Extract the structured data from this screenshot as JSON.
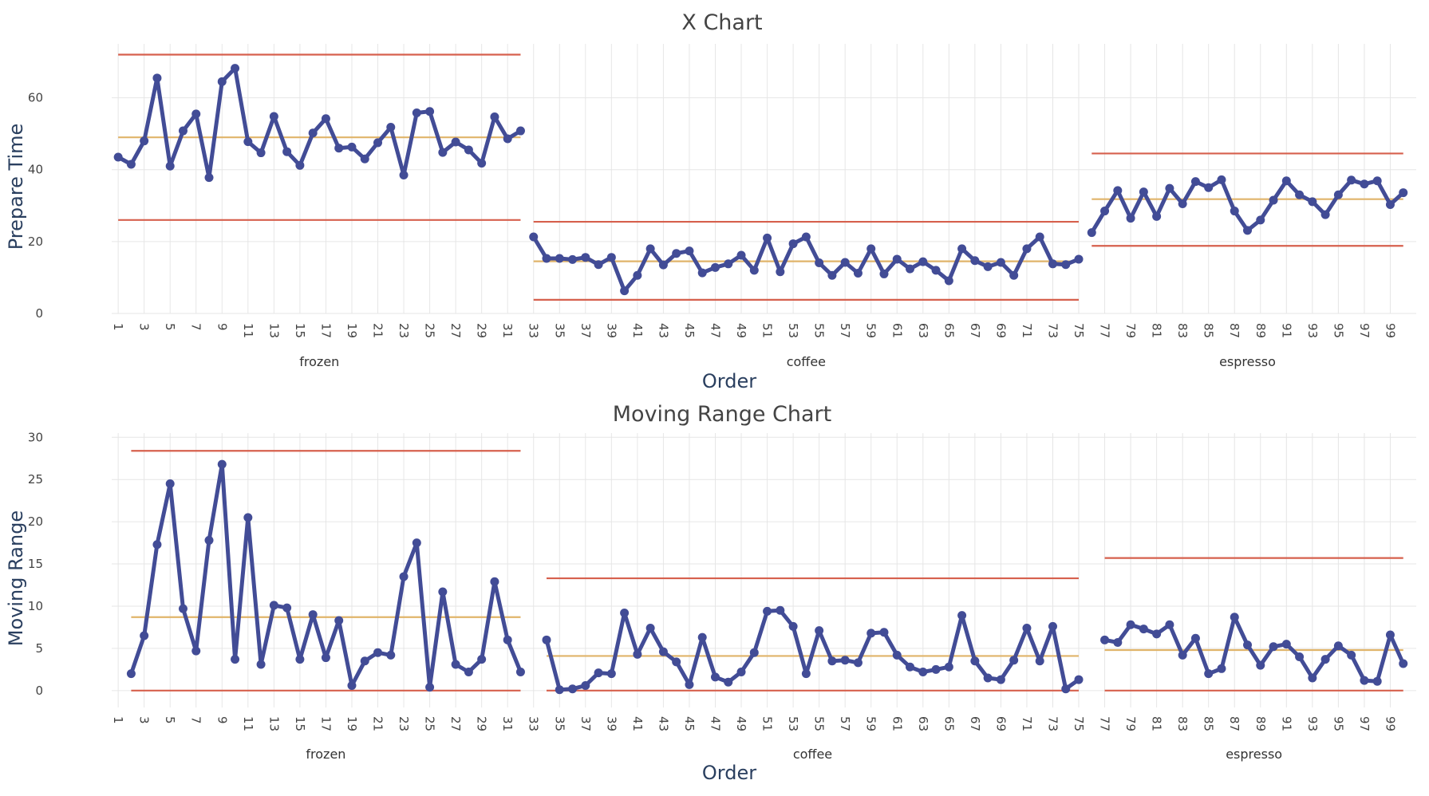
{
  "colors": {
    "series": "#424c96",
    "limit": "#d6604d",
    "center": "#e0b46a",
    "grid": "#e6e6e6"
  },
  "chart_data": [
    {
      "type": "line",
      "title": "X Chart",
      "xlabel": "Order",
      "ylabel": "Prepare Time",
      "ylim": [
        0,
        75
      ],
      "yticks": [
        0,
        20,
        40,
        60
      ],
      "xlim": [
        0.5,
        101
      ],
      "x_tick_labels": [
        1,
        3,
        5,
        7,
        9,
        11,
        13,
        15,
        17,
        19,
        21,
        23,
        25,
        27,
        29,
        31,
        33,
        35,
        37,
        39,
        41,
        43,
        45,
        47,
        49,
        51,
        53,
        55,
        57,
        59,
        61,
        63,
        65,
        67,
        69,
        71,
        73,
        75,
        77,
        79,
        81,
        83,
        85,
        87,
        89,
        91,
        93,
        95,
        97,
        99
      ],
      "groups": [
        {
          "name": "frozen",
          "x_start": 1,
          "values": [
            43.5,
            41.5,
            48,
            65.5,
            41,
            50.8,
            55.5,
            37.8,
            64.5,
            68.2,
            47.8,
            44.7,
            54.8,
            45,
            41.2,
            50.2,
            54.2,
            46,
            46.3,
            43,
            47.5,
            51.8,
            38.5,
            55.8,
            56.2,
            44.8,
            47.7,
            45.5,
            41.8,
            54.7,
            48.6,
            50.8
          ],
          "ucl": 72,
          "center": 49,
          "lcl": 26
        },
        {
          "name": "coffee",
          "x_start": 33,
          "values": [
            21.3,
            15.3,
            15.3,
            15,
            15.6,
            13.6,
            15.6,
            6.3,
            10.6,
            18,
            13.5,
            16.7,
            17.4,
            11.3,
            12.8,
            13.8,
            16.2,
            12,
            21,
            11.6,
            19.4,
            21.3,
            14.1,
            10.6,
            14.2,
            11.2,
            18,
            11,
            15.1,
            12.4,
            14.4,
            12,
            9.1,
            18,
            14.7,
            13,
            14.2,
            10.6,
            18,
            21.3,
            13.8,
            13.6,
            15.1
          ],
          "ucl": 25.5,
          "center": 14.5,
          "lcl": 3.8
        },
        {
          "name": "espresso",
          "x_start": 76,
          "values": [
            22.5,
            28.5,
            34.2,
            26.5,
            33.8,
            27,
            34.8,
            30.5,
            36.7,
            35,
            37.2,
            28.5,
            23.1,
            26,
            31.5,
            36.9,
            33,
            31.1,
            27.5,
            33,
            37.1,
            36,
            36.9,
            30.3,
            33.6
          ],
          "ucl": 44.5,
          "center": 31.8,
          "lcl": 18.8
        }
      ]
    },
    {
      "type": "line",
      "title": "Moving Range Chart",
      "xlabel": "Order",
      "ylabel": "Moving Range",
      "ylim": [
        -2,
        30.5
      ],
      "yticks": [
        0,
        5,
        10,
        15,
        20,
        25,
        30
      ],
      "xlim": [
        0.5,
        101
      ],
      "x_tick_labels": [
        1,
        3,
        5,
        7,
        9,
        11,
        13,
        15,
        17,
        19,
        21,
        23,
        25,
        27,
        29,
        31,
        33,
        35,
        37,
        39,
        41,
        43,
        45,
        47,
        49,
        51,
        53,
        55,
        57,
        59,
        61,
        63,
        65,
        67,
        69,
        71,
        73,
        75,
        77,
        79,
        81,
        83,
        85,
        87,
        89,
        91,
        93,
        95,
        97,
        99
      ],
      "groups": [
        {
          "name": "frozen",
          "x_start": 2,
          "values": [
            2,
            6.5,
            17.3,
            24.5,
            9.7,
            4.7,
            17.8,
            26.8,
            3.7,
            20.5,
            3.1,
            10.1,
            9.8,
            3.7,
            9,
            3.9,
            8.3,
            0.6,
            3.5,
            4.5,
            4.2,
            13.5,
            17.5,
            0.4,
            11.7,
            3.1,
            2.2,
            3.7,
            12.9,
            6,
            2.2
          ],
          "ucl": 28.4,
          "center": 8.7,
          "lcl": 0
        },
        {
          "name": "coffee",
          "x_start": 34,
          "values": [
            6,
            0.1,
            0.2,
            0.6,
            2.1,
            2,
            9.2,
            4.3,
            7.4,
            4.6,
            3.4,
            0.7,
            6.3,
            1.6,
            1,
            2.2,
            4.5,
            9.4,
            9.5,
            7.6,
            2,
            7.1,
            3.5,
            3.6,
            3.3,
            6.8,
            6.9,
            4.2,
            2.8,
            2.2,
            2.5,
            2.8,
            8.9,
            3.5,
            1.5,
            1.3,
            3.6,
            7.4,
            3.5,
            7.6,
            0.2,
            1.3
          ],
          "ucl": 13.3,
          "center": 4.1,
          "lcl": 0
        },
        {
          "name": "espresso",
          "x_start": 77,
          "values": [
            6,
            5.7,
            7.8,
            7.3,
            6.7,
            7.8,
            4.2,
            6.2,
            2,
            2.6,
            8.7,
            5.4,
            3,
            5.2,
            5.5,
            4,
            1.5,
            3.7,
            5.3,
            4.2,
            1.2,
            1.1,
            6.6,
            3.2
          ],
          "ucl": 15.7,
          "center": 4.8,
          "lcl": 0
        }
      ]
    }
  ]
}
